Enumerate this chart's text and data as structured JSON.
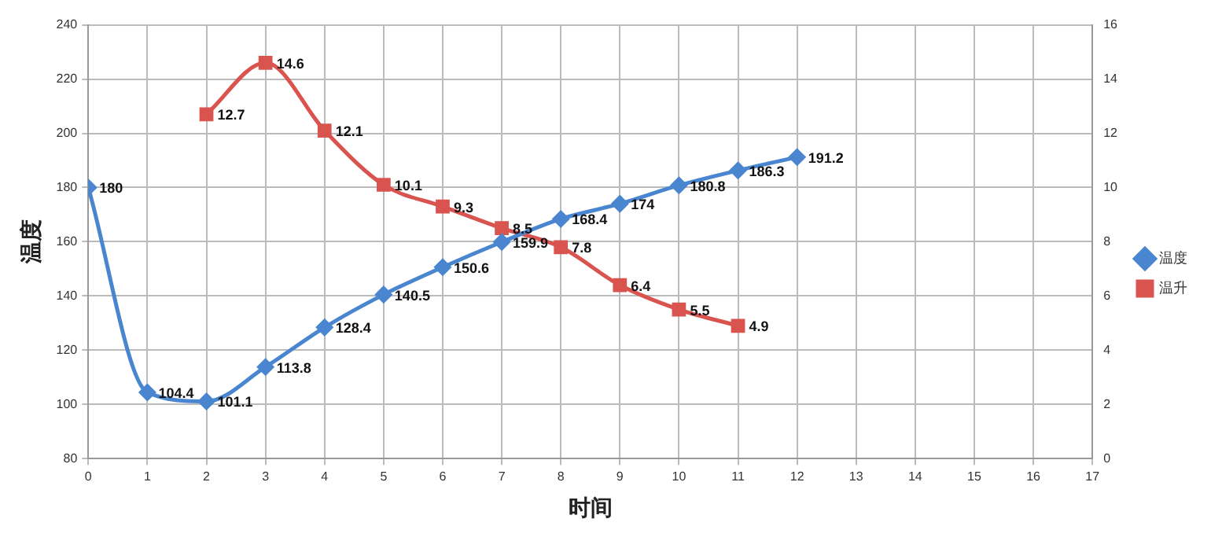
{
  "chart_data": {
    "type": "line",
    "xlabel": "时间",
    "ylabel": "温度",
    "xlim": [
      0,
      17
    ],
    "xticks": [
      0,
      1,
      2,
      3,
      4,
      5,
      6,
      7,
      8,
      9,
      10,
      11,
      12,
      13,
      14,
      15,
      16,
      17
    ],
    "ylim": [
      80,
      240
    ],
    "yticks": [
      80,
      100,
      120,
      140,
      160,
      180,
      200,
      220,
      240
    ],
    "y2lim": [
      0,
      16
    ],
    "y2ticks": [
      0,
      2,
      4,
      6,
      8,
      10,
      12,
      14,
      16
    ],
    "grid": true,
    "legend": "right",
    "data_labels": true,
    "series": [
      {
        "name": "温度",
        "color": "#4a86d0",
        "marker": "diamond",
        "x": [
          0,
          1,
          2,
          3,
          4,
          5,
          6,
          7,
          8,
          9,
          10,
          11,
          12
        ],
        "values": [
          180,
          104.4,
          101.1,
          113.8,
          128.4,
          140.5,
          150.6,
          159.9,
          168.4,
          174,
          180.8,
          186.3,
          191.2
        ]
      },
      {
        "name": "温升",
        "color": "#d9534f",
        "marker": "square",
        "axis": "y2",
        "x": [
          2,
          3,
          4,
          5,
          6,
          7,
          8,
          9,
          10,
          11
        ],
        "values": [
          12.7,
          14.6,
          12.1,
          10.1,
          9.3,
          8.5,
          7.8,
          6.4,
          5.5,
          4.9
        ]
      }
    ]
  }
}
